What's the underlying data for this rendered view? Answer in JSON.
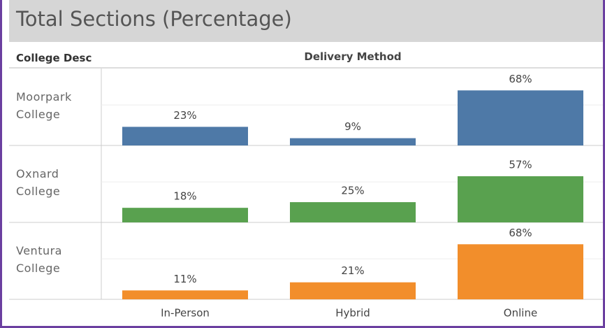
{
  "chart_data": {
    "type": "bar",
    "title": "Total Sections (Percentage)",
    "row_header": "College Desc",
    "column_header": "Delivery Method",
    "categories": [
      "In-Person",
      "Hybrid",
      "Online"
    ],
    "series": [
      {
        "name": "Moorpark College",
        "color": "#4e79a7",
        "values": [
          23,
          9,
          68
        ],
        "value_labels": [
          "23%",
          "9%",
          "68%"
        ]
      },
      {
        "name": "Oxnard College",
        "color": "#59a14f",
        "values": [
          18,
          25,
          57
        ],
        "value_labels": [
          "18%",
          "25%",
          "57%"
        ]
      },
      {
        "name": "Ventura College",
        "color": "#f28e2b",
        "values": [
          11,
          21,
          68
        ],
        "value_labels": [
          "11%",
          "21%",
          "68%"
        ]
      }
    ],
    "ylim": [
      0,
      95
    ],
    "yticks": [
      0,
      50
    ],
    "grid": true
  }
}
